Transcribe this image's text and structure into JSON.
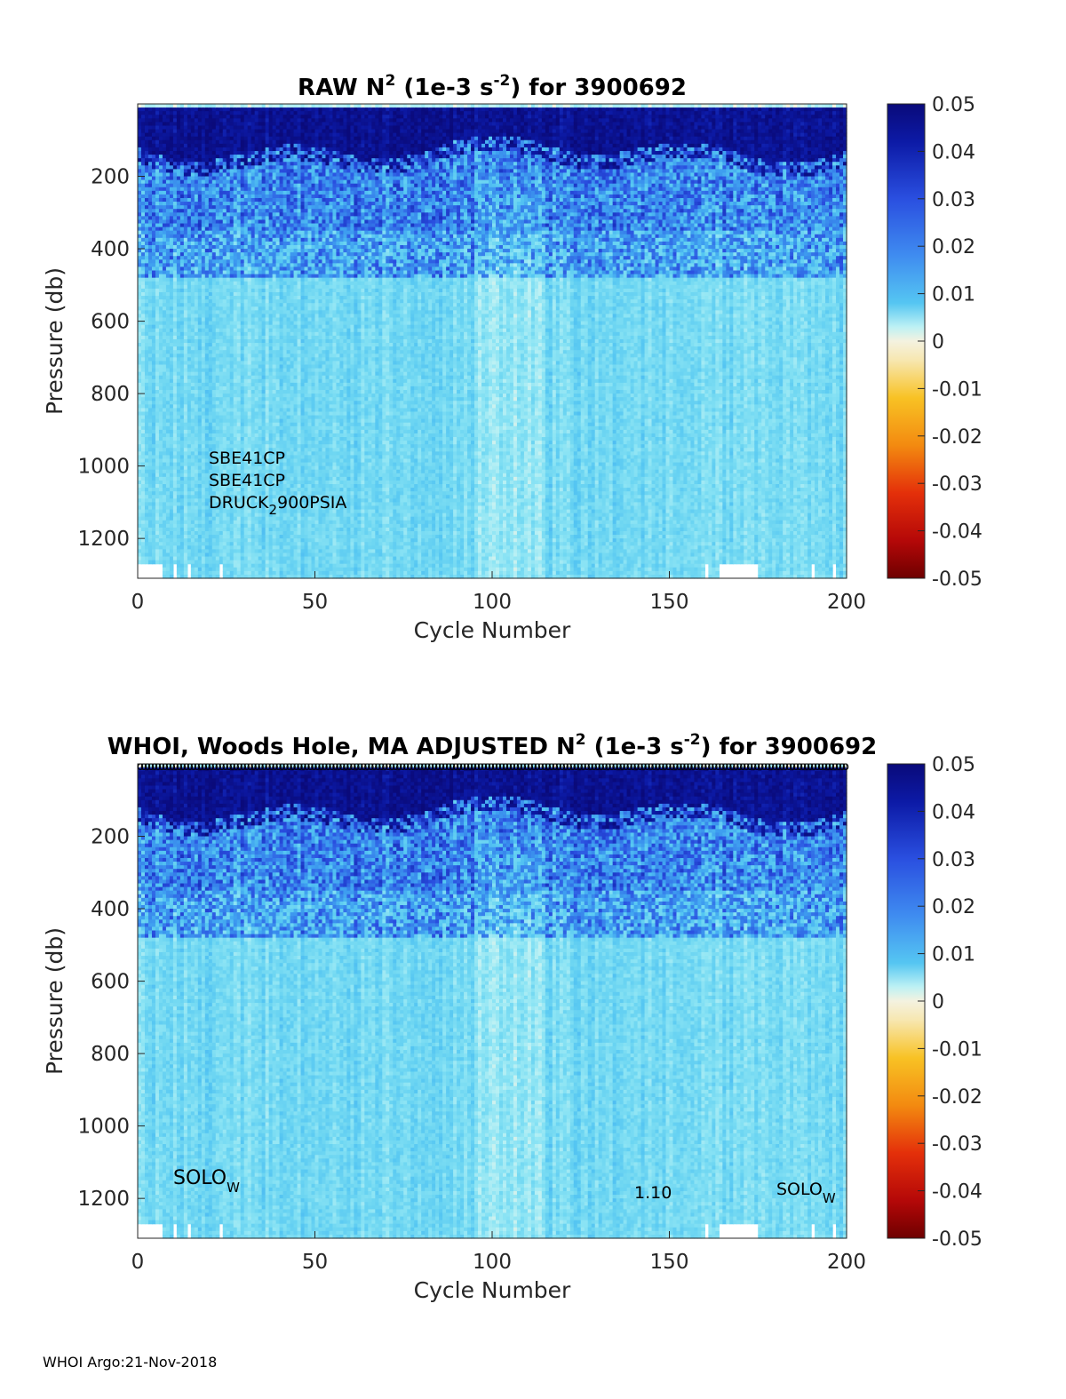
{
  "footer": "WHOI Argo:21-Nov-2018",
  "chart_data": [
    {
      "type": "heatmap",
      "title_parts": {
        "pre": "RAW N",
        "sup1": "2",
        "mid": " (1e-3 s",
        "sup2": "-2",
        "post": ") for 3900692"
      },
      "xlabel": "Cycle Number",
      "ylabel": "Pressure (db)",
      "xlim": [
        0,
        200
      ],
      "ylim": [
        0,
        1310
      ],
      "y_reversed": true,
      "xticks": [
        0,
        50,
        100,
        150,
        200
      ],
      "yticks": [
        200,
        400,
        600,
        800,
        1000,
        1200
      ],
      "colorbar": {
        "clim": [
          -0.05,
          0.05
        ],
        "ticks": [
          0.05,
          0.04,
          0.03,
          0.02,
          0.01,
          0,
          -0.01,
          -0.02,
          -0.03,
          -0.04,
          -0.05
        ],
        "colormap": "jet-variant-white-center"
      },
      "annotations": [
        {
          "text": "SBE41CP"
        },
        {
          "text": "SBE41CP"
        },
        {
          "text": "DRUCK",
          "sub": "2",
          "tail": "900PSIA"
        }
      ],
      "approx_profile": [
        {
          "p_range": [
            0,
            200
          ],
          "n2": 0.045
        },
        {
          "p_range": [
            200,
            350
          ],
          "n2": 0.028
        },
        {
          "p_range": [
            350,
            480
          ],
          "n2": 0.022
        },
        {
          "p_range": [
            480,
            1300
          ],
          "n2": 0.011
        }
      ],
      "missing_bottom_cycles": [
        1,
        2,
        3,
        4,
        5,
        6,
        7,
        11,
        15,
        24,
        161,
        165,
        166,
        167,
        168,
        169,
        170,
        171,
        172,
        173,
        174,
        175,
        191,
        197
      ]
    },
    {
      "type": "heatmap",
      "title_parts": {
        "pre": "WHOI, Woods Hole, MA  ADJUSTED N",
        "sup1": "2",
        "mid": " (1e-3 s",
        "sup2": "-2",
        "post": ") for 3900692"
      },
      "xlabel": "Cycle Number",
      "ylabel": "Pressure (db)",
      "xlim": [
        0,
        200
      ],
      "ylim": [
        0,
        1310
      ],
      "y_reversed": true,
      "xticks": [
        0,
        50,
        100,
        150,
        200
      ],
      "yticks": [
        200,
        400,
        600,
        800,
        1000,
        1200
      ],
      "colorbar": {
        "clim": [
          -0.05,
          0.05
        ],
        "ticks": [
          0.05,
          0.04,
          0.03,
          0.02,
          0.01,
          0,
          -0.01,
          -0.02,
          -0.03,
          -0.04,
          -0.05
        ],
        "colormap": "jet-variant-white-center"
      },
      "annotations": [
        {
          "text": "SOLO",
          "sub": "W"
        },
        {
          "text": "1.10"
        },
        {
          "text": "SOLO",
          "sub": "W"
        }
      ],
      "top_markers": "o",
      "approx_profile": [
        {
          "p_range": [
            0,
            200
          ],
          "n2": 0.045
        },
        {
          "p_range": [
            200,
            350
          ],
          "n2": 0.028
        },
        {
          "p_range": [
            350,
            480
          ],
          "n2": 0.022
        },
        {
          "p_range": [
            480,
            1300
          ],
          "n2": 0.011
        }
      ],
      "missing_bottom_cycles": [
        1,
        2,
        3,
        4,
        5,
        6,
        7,
        11,
        15,
        24,
        161,
        165,
        166,
        167,
        168,
        169,
        170,
        171,
        172,
        173,
        174,
        175,
        191,
        197
      ]
    }
  ]
}
